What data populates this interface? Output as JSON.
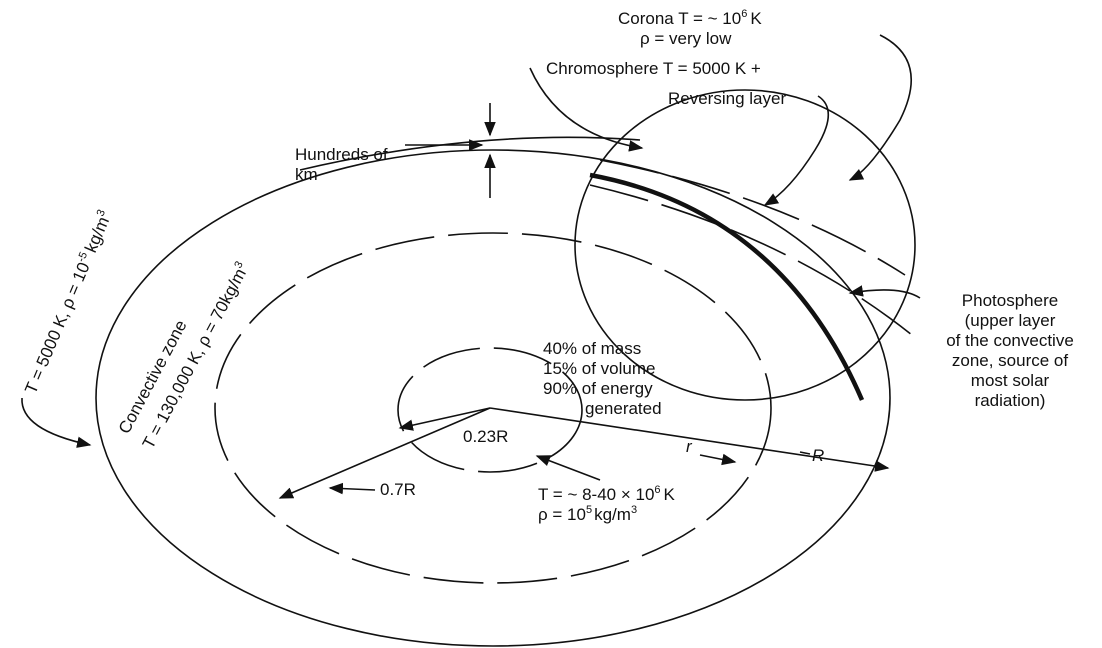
{
  "corona": {
    "name": "Corona",
    "temp": "T = ~ 10",
    "exp": "6",
    "unit": "K",
    "density": "ρ = very low"
  },
  "chromosphere": {
    "name": "Chromosphere",
    "temp": "T = 5000  K +"
  },
  "reversing_layer": "Reversing layer",
  "thickness": [
    "Hundreds of",
    "km"
  ],
  "photosphere": [
    "Photosphere",
    "(upper layer",
    "of the convective",
    "zone, source of",
    "most solar",
    "radiation)"
  ],
  "surface": {
    "temp": "T = 5000 K, ρ = 10",
    "exp": "-5",
    "unit": "kg/m",
    "exp2": "3"
  },
  "convective_zone": {
    "name": "Convective zone",
    "temp": "T = 130,000 K, ρ = 70kg/m",
    "exp": "3"
  },
  "core": {
    "lines": [
      "40% of mass",
      "15% of volume",
      "90% of energy",
      "generated"
    ],
    "temp": "T = ~ 8-40 × 10",
    "temp_exp": "6",
    "temp_unit": "K",
    "density": "ρ = 10",
    "density_exp": "5",
    "density_unit": "kg/m",
    "density_exp2": "3"
  },
  "radii": {
    "core": "0.23R",
    "convective": "0.7R",
    "r": "r",
    "surface": "R"
  }
}
